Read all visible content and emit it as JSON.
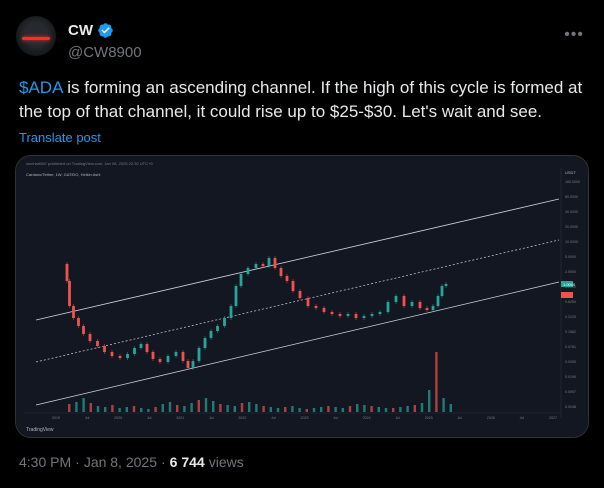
{
  "author": {
    "display_name": "CW",
    "handle": "@CW8900",
    "verified": true,
    "more_icon": "more-horizontal-icon"
  },
  "post": {
    "cashtag": "$ADA",
    "text_rest": " is forming an ascending channel. If the high of this cycle is formed at the top of that channel, it could rise up to $25-$30. Let's wait and see.",
    "translate_label": "Translate post"
  },
  "chart": {
    "header_line": "cmchart567 published on TradingView.com, Jan 08, 2025 22:30 UTC+9",
    "symbol_line": "Cardano/Tether, 1W, GATEIO, Heikin Ashi",
    "quote_currency": "USDT",
    "watermark": "TradingView",
    "price_ticks": [
      "160.0000",
      "80.0000",
      "40.0000",
      "20.0000",
      "10.0000",
      "5.0000",
      "2.5000",
      "1.2500",
      "0.6250",
      "0.3125",
      "0.1562",
      "0.0781",
      "0.0390",
      "0.0195",
      "0.0097",
      "0.0048"
    ],
    "time_ticks": [
      "2019",
      "Jul",
      "2020",
      "Jul",
      "2021",
      "Jul",
      "2022",
      "Jul",
      "2023",
      "Jul",
      "2024",
      "Jul",
      "2025",
      "Jul",
      "2026",
      "Jul",
      "2027"
    ],
    "current_price_label": "1.0000",
    "colors": {
      "up": "#26a69a",
      "down": "#ef5350",
      "channel": "#d1d4dc",
      "background": "#131722"
    }
  },
  "footer": {
    "time": "4:30 PM",
    "separator": "·",
    "date": "Jan 8, 2025",
    "views_count": "6 744",
    "views_label": "views"
  }
}
